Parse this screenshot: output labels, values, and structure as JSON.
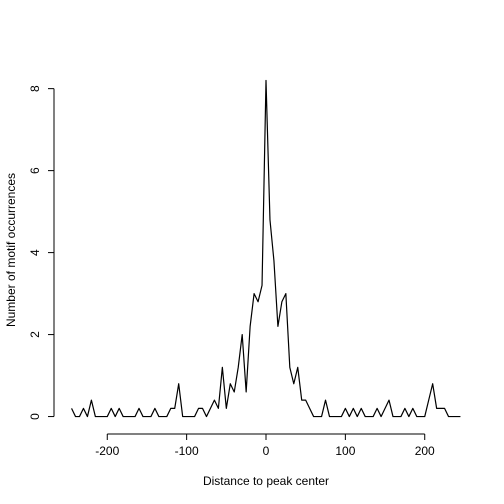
{
  "chart_data": {
    "type": "line",
    "x_label": "Distance to peak center",
    "y_label": "Number of motif occurrences",
    "x": [
      -245,
      -240,
      -235,
      -230,
      -225,
      -220,
      -215,
      -210,
      -205,
      -200,
      -195,
      -190,
      -185,
      -180,
      -175,
      -170,
      -165,
      -160,
      -155,
      -150,
      -145,
      -140,
      -135,
      -130,
      -125,
      -120,
      -115,
      -110,
      -105,
      -100,
      -95,
      -90,
      -85,
      -80,
      -75,
      -70,
      -65,
      -60,
      -55,
      -50,
      -45,
      -40,
      -35,
      -30,
      -25,
      -20,
      -15,
      -10,
      -5,
      0,
      5,
      10,
      15,
      20,
      25,
      30,
      35,
      40,
      45,
      50,
      55,
      60,
      65,
      70,
      75,
      80,
      85,
      90,
      95,
      100,
      105,
      110,
      115,
      120,
      125,
      130,
      135,
      140,
      145,
      150,
      155,
      160,
      165,
      170,
      175,
      180,
      185,
      190,
      195,
      200,
      205,
      210,
      215,
      220,
      225,
      230,
      235,
      240,
      245
    ],
    "series": [
      {
        "color": "#000000",
        "values": [
          0.2,
          0,
          0,
          0.2,
          0,
          0.4,
          0,
          0,
          0,
          0,
          0.2,
          0,
          0.2,
          0,
          0,
          0,
          0,
          0.2,
          0,
          0,
          0,
          0.2,
          0,
          0,
          0,
          0.2,
          0.2,
          0.8,
          0,
          0,
          0,
          0,
          0.2,
          0.2,
          0,
          0.2,
          0.4,
          0.2,
          1.2,
          0.2,
          0.8,
          0.6,
          1.2,
          2,
          0.6,
          2.2,
          3,
          2.8,
          3.2,
          8.2,
          4.8,
          3.8,
          2.2,
          2.8,
          3,
          1.2,
          0.8,
          1.2,
          0.4,
          0.4,
          0.2,
          0,
          0,
          0,
          0.4,
          0,
          0,
          0,
          0,
          0.2,
          0,
          0.2,
          0,
          0.2,
          0,
          0,
          0,
          0.2,
          0,
          0.2,
          0.4,
          0,
          0,
          0,
          0.2,
          0,
          0.2,
          0,
          0,
          0,
          0.4,
          0.8,
          0.2,
          0.2,
          0.2,
          0,
          0,
          0,
          0
        ]
      }
    ],
    "xlim": [
      -264.6,
      264.6
    ],
    "xticks": [
      -200,
      -100,
      0,
      100,
      200
    ],
    "ylim": [
      -0.328,
      8.528
    ],
    "yticks": [
      0,
      2,
      4,
      6,
      8
    ],
    "grid": false
  }
}
